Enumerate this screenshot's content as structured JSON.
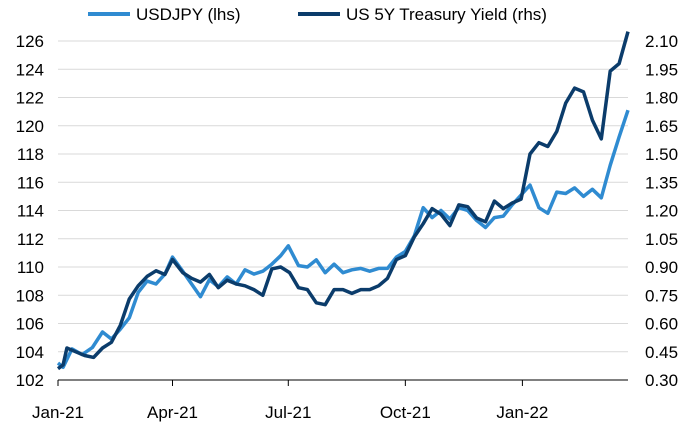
{
  "chart_data": {
    "type": "line",
    "title": "",
    "legend_position": "top",
    "grid": true,
    "xlabel": "",
    "x_ticks": [
      "Jan-21",
      "Apr-21",
      "Jul-21",
      "Oct-21",
      "Jan-22"
    ],
    "x_range": [
      "2021-01-01",
      "2022-03-25"
    ],
    "y_left": {
      "range": [
        102,
        126
      ],
      "ticks": [
        102,
        104,
        106,
        108,
        110,
        112,
        114,
        116,
        118,
        120,
        122,
        124,
        126
      ],
      "ylabel": ""
    },
    "y_right": {
      "range": [
        0.3,
        2.1
      ],
      "ticks": [
        "0.30",
        "0.45",
        "0.60",
        "0.75",
        "0.90",
        "1.05",
        "1.20",
        "1.35",
        "1.50",
        "1.65",
        "1.80",
        "1.95",
        "2.10"
      ],
      "ylabel": ""
    },
    "series": [
      {
        "name": "USDJPY (lhs)",
        "axis": "left",
        "color": "#2f8bd1",
        "points": [
          [
            "2021-01-01",
            103.2
          ],
          [
            "2021-01-05",
            102.9
          ],
          [
            "2021-01-12",
            104.2
          ],
          [
            "2021-01-20",
            103.8
          ],
          [
            "2021-01-28",
            104.3
          ],
          [
            "2021-02-05",
            105.4
          ],
          [
            "2021-02-12",
            104.9
          ],
          [
            "2021-02-19",
            105.6
          ],
          [
            "2021-02-26",
            106.4
          ],
          [
            "2021-03-05",
            108.2
          ],
          [
            "2021-03-12",
            109.0
          ],
          [
            "2021-03-19",
            108.8
          ],
          [
            "2021-03-26",
            109.5
          ],
          [
            "2021-04-01",
            110.7
          ],
          [
            "2021-04-09",
            109.7
          ],
          [
            "2021-04-16",
            108.8
          ],
          [
            "2021-04-23",
            107.9
          ],
          [
            "2021-04-30",
            109.1
          ],
          [
            "2021-05-07",
            108.6
          ],
          [
            "2021-05-14",
            109.3
          ],
          [
            "2021-05-21",
            108.8
          ],
          [
            "2021-05-28",
            109.8
          ],
          [
            "2021-06-04",
            109.5
          ],
          [
            "2021-06-11",
            109.7
          ],
          [
            "2021-06-18",
            110.2
          ],
          [
            "2021-06-25",
            110.8
          ],
          [
            "2021-07-01",
            111.5
          ],
          [
            "2021-07-09",
            110.1
          ],
          [
            "2021-07-16",
            110.0
          ],
          [
            "2021-07-23",
            110.5
          ],
          [
            "2021-07-30",
            109.6
          ],
          [
            "2021-08-06",
            110.2
          ],
          [
            "2021-08-13",
            109.6
          ],
          [
            "2021-08-20",
            109.8
          ],
          [
            "2021-08-27",
            109.9
          ],
          [
            "2021-09-03",
            109.7
          ],
          [
            "2021-09-10",
            109.9
          ],
          [
            "2021-09-17",
            109.9
          ],
          [
            "2021-09-24",
            110.7
          ],
          [
            "2021-10-01",
            111.1
          ],
          [
            "2021-10-08",
            112.2
          ],
          [
            "2021-10-15",
            114.2
          ],
          [
            "2021-10-22",
            113.5
          ],
          [
            "2021-10-29",
            114.0
          ],
          [
            "2021-11-05",
            113.4
          ],
          [
            "2021-11-12",
            114.2
          ],
          [
            "2021-11-19",
            114.0
          ],
          [
            "2021-11-26",
            113.3
          ],
          [
            "2021-12-03",
            112.8
          ],
          [
            "2021-12-10",
            113.5
          ],
          [
            "2021-12-17",
            113.6
          ],
          [
            "2021-12-24",
            114.4
          ],
          [
            "2021-12-31",
            115.1
          ],
          [
            "2022-01-07",
            115.8
          ],
          [
            "2022-01-14",
            114.2
          ],
          [
            "2022-01-21",
            113.8
          ],
          [
            "2022-01-28",
            115.3
          ],
          [
            "2022-02-04",
            115.2
          ],
          [
            "2022-02-11",
            115.6
          ],
          [
            "2022-02-18",
            115.0
          ],
          [
            "2022-02-25",
            115.5
          ],
          [
            "2022-03-04",
            114.9
          ],
          [
            "2022-03-11",
            117.2
          ],
          [
            "2022-03-18",
            119.2
          ],
          [
            "2022-03-25",
            121.1
          ]
        ]
      },
      {
        "name": "US 5Y Treasury Yield (rhs)",
        "axis": "right",
        "color": "#0b3c6b",
        "points": [
          [
            "2021-01-01",
            0.36
          ],
          [
            "2021-01-05",
            0.38
          ],
          [
            "2021-01-08",
            0.47
          ],
          [
            "2021-01-15",
            0.45
          ],
          [
            "2021-01-22",
            0.43
          ],
          [
            "2021-01-29",
            0.42
          ],
          [
            "2021-02-05",
            0.47
          ],
          [
            "2021-02-12",
            0.5
          ],
          [
            "2021-02-19",
            0.59
          ],
          [
            "2021-02-26",
            0.73
          ],
          [
            "2021-03-05",
            0.8
          ],
          [
            "2021-03-12",
            0.85
          ],
          [
            "2021-03-19",
            0.88
          ],
          [
            "2021-03-26",
            0.86
          ],
          [
            "2021-04-01",
            0.94
          ],
          [
            "2021-04-09",
            0.87
          ],
          [
            "2021-04-16",
            0.84
          ],
          [
            "2021-04-23",
            0.82
          ],
          [
            "2021-04-30",
            0.86
          ],
          [
            "2021-05-07",
            0.79
          ],
          [
            "2021-05-14",
            0.83
          ],
          [
            "2021-05-21",
            0.81
          ],
          [
            "2021-05-28",
            0.8
          ],
          [
            "2021-06-04",
            0.78
          ],
          [
            "2021-06-11",
            0.75
          ],
          [
            "2021-06-18",
            0.89
          ],
          [
            "2021-06-25",
            0.9
          ],
          [
            "2021-07-02",
            0.87
          ],
          [
            "2021-07-09",
            0.79
          ],
          [
            "2021-07-16",
            0.78
          ],
          [
            "2021-07-23",
            0.71
          ],
          [
            "2021-07-30",
            0.7
          ],
          [
            "2021-08-06",
            0.78
          ],
          [
            "2021-08-13",
            0.78
          ],
          [
            "2021-08-20",
            0.76
          ],
          [
            "2021-08-27",
            0.78
          ],
          [
            "2021-09-03",
            0.78
          ],
          [
            "2021-09-10",
            0.8
          ],
          [
            "2021-09-17",
            0.84
          ],
          [
            "2021-09-24",
            0.94
          ],
          [
            "2021-10-01",
            0.96
          ],
          [
            "2021-10-08",
            1.06
          ],
          [
            "2021-10-15",
            1.13
          ],
          [
            "2021-10-22",
            1.21
          ],
          [
            "2021-10-29",
            1.18
          ],
          [
            "2021-11-05",
            1.12
          ],
          [
            "2021-11-12",
            1.23
          ],
          [
            "2021-11-19",
            1.22
          ],
          [
            "2021-11-26",
            1.16
          ],
          [
            "2021-12-03",
            1.14
          ],
          [
            "2021-12-10",
            1.25
          ],
          [
            "2021-12-17",
            1.21
          ],
          [
            "2021-12-24",
            1.24
          ],
          [
            "2021-12-31",
            1.26
          ],
          [
            "2022-01-07",
            1.5
          ],
          [
            "2022-01-14",
            1.56
          ],
          [
            "2022-01-21",
            1.54
          ],
          [
            "2022-01-28",
            1.62
          ],
          [
            "2022-02-04",
            1.77
          ],
          [
            "2022-02-11",
            1.85
          ],
          [
            "2022-02-18",
            1.83
          ],
          [
            "2022-02-25",
            1.68
          ],
          [
            "2022-03-04",
            1.58
          ],
          [
            "2022-03-11",
            1.94
          ],
          [
            "2022-03-18",
            1.98
          ],
          [
            "2022-03-25",
            2.15
          ]
        ]
      }
    ]
  }
}
